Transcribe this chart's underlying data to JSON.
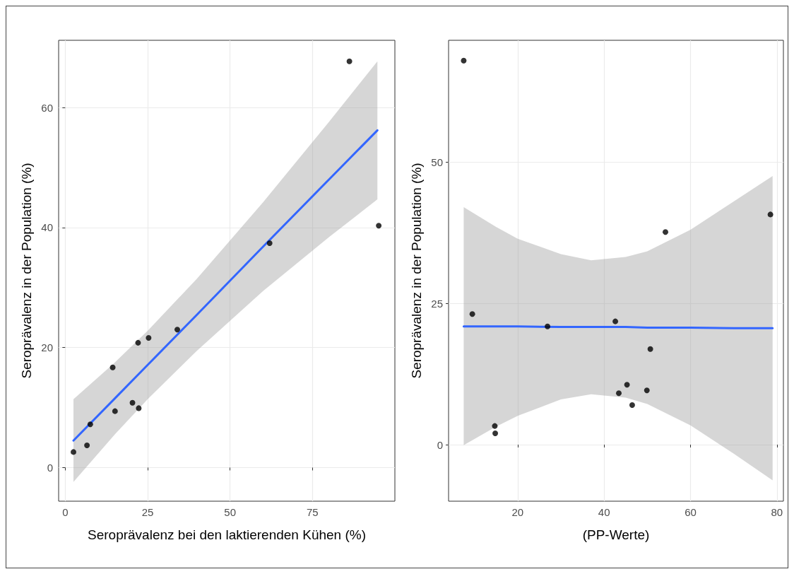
{
  "chart_data": [
    {
      "type": "scatter",
      "xlabel": "Seroprävalenz bei den laktierenden Kühen (%)",
      "ylabel": "Seroprävalenz in der Population (%)",
      "xlim": [
        -2,
        100
      ],
      "ylim": [
        -5.6,
        71.2
      ],
      "xticks": [
        0,
        25,
        50,
        75
      ],
      "yticks": [
        0,
        20,
        40,
        60
      ],
      "grid": true,
      "series": [
        {
          "marker": "circle",
          "color": "#000000",
          "x": [
            86.2,
            95.1,
            62,
            34,
            25.3,
            22.1,
            14.4,
            20.4,
            22.3,
            15.1,
            7.6,
            6.6,
            2.5
          ],
          "values": [
            67.7,
            40.3,
            37.4,
            23.0,
            21.6,
            20.8,
            16.7,
            10.8,
            9.9,
            9.4,
            7.2,
            3.7,
            2.6
          ]
        },
        {
          "type": "line",
          "marker": "none",
          "color": "#3366ff",
          "x": [
            2.5,
            15,
            25,
            40,
            60,
            80,
            94.7
          ],
          "values": [
            4.5,
            11.5,
            17.1,
            25.5,
            36.8,
            48.0,
            56.2
          ],
          "lower": [
            -2.4,
            5.5,
            11.4,
            19.5,
            29.4,
            38.4,
            44.7
          ],
          "upper": [
            11.4,
            17.5,
            22.8,
            31.5,
            44.2,
            57.6,
            67.7
          ]
        }
      ]
    },
    {
      "type": "scatter",
      "xlabel": "(PP-Werte)",
      "ylabel": "Seroprävalenz in der Population (%)",
      "xlim": [
        4,
        81.5
      ],
      "ylim": [
        -10,
        71.5
      ],
      "xticks": [
        20,
        40,
        60,
        80
      ],
      "yticks": [
        0,
        25,
        50
      ],
      "grid": true,
      "series": [
        {
          "marker": "circle",
          "color": "#000000",
          "x": [
            7.5,
            78.5,
            54.2,
            9.5,
            26.9,
            42.6,
            50.7,
            43.4,
            45.3,
            49.9,
            46.5,
            14.7,
            14.8
          ],
          "values": [
            67.9,
            40.7,
            37.6,
            23.1,
            20.9,
            21.8,
            16.9,
            9.1,
            10.6,
            9.6,
            7.0,
            3.3,
            2.0
          ]
        },
        {
          "type": "line",
          "marker": "none",
          "color": "#3366ff",
          "x": [
            7.5,
            15,
            20,
            30,
            37,
            45,
            50,
            60,
            70,
            79
          ],
          "values": [
            20.9,
            20.9,
            20.9,
            20.8,
            20.8,
            20.8,
            20.7,
            20.7,
            20.6,
            20.6
          ],
          "lower": [
            -0.1,
            3.2,
            5.1,
            8.0,
            8.9,
            8.3,
            7.2,
            3.4,
            -1.6,
            -6.3
          ],
          "upper": [
            42.0,
            38.5,
            36.4,
            33.7,
            32.6,
            33.2,
            34.2,
            38.0,
            43.0,
            47.5
          ]
        }
      ]
    }
  ]
}
